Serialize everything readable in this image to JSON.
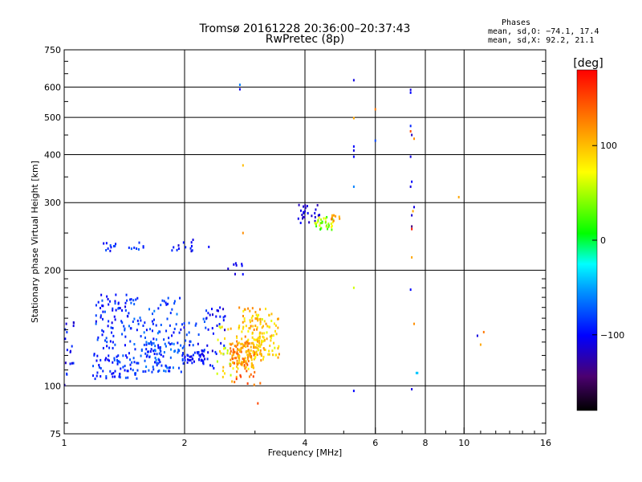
{
  "chart_data": {
    "type": "scatter",
    "title": "Tromsø 20161228 20:36:00–20:37:43",
    "subtitle": "RwPretec (8p)",
    "xlabel": "Frequency [MHz]",
    "ylabel": "Stationary phase Virtual Height [km]",
    "x_scale": "log",
    "y_scale": "log",
    "xlim": [
      1,
      16
    ],
    "ylim": [
      75,
      750
    ],
    "x_ticks": [
      1,
      2,
      4,
      6,
      8,
      10,
      16
    ],
    "x_tick_labels": [
      "1",
      "2",
      "4",
      "6",
      "8",
      "10",
      "16"
    ],
    "y_ticks": [
      75,
      100,
      200,
      300,
      400,
      500,
      600,
      750
    ],
    "y_tick_labels": [
      "75",
      "100",
      "200",
      "300",
      "400",
      "500",
      "600",
      "750"
    ],
    "grid": true,
    "stats": {
      "heading": "Phases",
      "line_o": "mean, sd,O: −74.1, 17.4",
      "line_x": "mean, sd,X:  92.2, 21.1"
    },
    "colorbar": {
      "label": "[deg]",
      "range": [
        -180,
        180
      ],
      "ticks": [
        100,
        0,
        -100
      ],
      "tick_labels": [
        "100",
        "0",
        "−100"
      ]
    },
    "clusters": [
      {
        "f": [
          1.0,
          1.06
        ],
        "h": [
          100,
          150
        ],
        "phase": [
          -120,
          -85
        ],
        "n": 18
      },
      {
        "f": [
          1.18,
          1.55
        ],
        "h": [
          104,
          122
        ],
        "phase": [
          -105,
          -70
        ],
        "n": 70
      },
      {
        "f": [
          1.55,
          2.0
        ],
        "h": [
          108,
          130
        ],
        "phase": [
          -100,
          -60
        ],
        "n": 80
      },
      {
        "f": [
          1.98,
          2.25
        ],
        "h": [
          114,
          124
        ],
        "phase": [
          -115,
          -85
        ],
        "n": 35
      },
      {
        "f": [
          1.2,
          1.45
        ],
        "h": [
          125,
          175
        ],
        "phase": [
          -110,
          -70
        ],
        "n": 70
      },
      {
        "f": [
          1.45,
          1.95
        ],
        "h": [
          122,
          170
        ],
        "phase": [
          -105,
          -60
        ],
        "n": 80
      },
      {
        "f": [
          1.95,
          2.3
        ],
        "h": [
          115,
          150
        ],
        "phase": [
          -110,
          -70
        ],
        "n": 30
      },
      {
        "f": [
          2.25,
          2.55
        ],
        "h": [
          110,
          160
        ],
        "phase": [
          -120,
          -80
        ],
        "n": 30
      },
      {
        "f": [
          2.4,
          2.65
        ],
        "h": [
          105,
          145
        ],
        "phase": [
          40,
          110
        ],
        "n": 25
      },
      {
        "f": [
          2.6,
          3.0
        ],
        "h": [
          112,
          130
        ],
        "phase": [
          90,
          145
        ],
        "n": 110
      },
      {
        "f": [
          2.7,
          3.2
        ],
        "h": [
          110,
          160
        ],
        "phase": [
          70,
          130
        ],
        "n": 100
      },
      {
        "f": [
          3.0,
          3.45
        ],
        "h": [
          118,
          155
        ],
        "phase": [
          60,
          120
        ],
        "n": 70
      },
      {
        "f": [
          2.45,
          3.1
        ],
        "h": [
          100,
          110
        ],
        "phase": [
          100,
          160
        ],
        "n": 15
      },
      {
        "f": [
          1.25,
          1.35
        ],
        "h": [
          224,
          236
        ],
        "phase": [
          -110,
          -70
        ],
        "n": 10
      },
      {
        "f": [
          1.45,
          1.6
        ],
        "h": [
          226,
          236
        ],
        "phase": [
          -95,
          -70
        ],
        "n": 8
      },
      {
        "f": [
          1.85,
          2.1
        ],
        "h": [
          224,
          238
        ],
        "phase": [
          -120,
          -80
        ],
        "n": 12
      },
      {
        "f": [
          2.55,
          2.8
        ],
        "h": [
          190,
          210
        ],
        "phase": [
          -115,
          -95
        ],
        "n": 8
      },
      {
        "f": [
          3.85,
          4.35
        ],
        "h": [
          265,
          300
        ],
        "phase": [
          -130,
          -100
        ],
        "n": 25
      },
      {
        "f": [
          4.2,
          4.7
        ],
        "h": [
          255,
          275
        ],
        "phase": [
          10,
          90
        ],
        "n": 35
      },
      {
        "f": [
          4.6,
          4.9
        ],
        "h": [
          268,
          278
        ],
        "phase": [
          100,
          145
        ],
        "n": 8
      }
    ],
    "points": [
      {
        "f": 2.75,
        "h": 608,
        "phase": -60
      },
      {
        "f": 2.75,
        "h": 592,
        "phase": -110
      },
      {
        "f": 2.8,
        "h": 375,
        "phase": 100
      },
      {
        "f": 2.8,
        "h": 250,
        "phase": 120
      },
      {
        "f": 5.3,
        "h": 625,
        "phase": -110
      },
      {
        "f": 5.3,
        "h": 420,
        "phase": -100
      },
      {
        "f": 5.3,
        "h": 410,
        "phase": -110
      },
      {
        "f": 5.3,
        "h": 395,
        "phase": -100
      },
      {
        "f": 5.3,
        "h": 330,
        "phase": -60
      },
      {
        "f": 5.3,
        "h": 180,
        "phase": 60
      },
      {
        "f": 5.3,
        "h": 97,
        "phase": -100
      },
      {
        "f": 5.3,
        "h": 498,
        "phase": 110
      },
      {
        "f": 6.0,
        "h": 525,
        "phase": 130
      },
      {
        "f": 6.0,
        "h": 435,
        "phase": -80
      },
      {
        "f": 7.35,
        "h": 590,
        "phase": -110
      },
      {
        "f": 7.35,
        "h": 580,
        "phase": -100
      },
      {
        "f": 7.35,
        "h": 475,
        "phase": -90
      },
      {
        "f": 7.35,
        "h": 460,
        "phase": 150
      },
      {
        "f": 7.4,
        "h": 450,
        "phase": -120
      },
      {
        "f": 7.5,
        "h": 440,
        "phase": 120
      },
      {
        "f": 7.35,
        "h": 395,
        "phase": -110
      },
      {
        "f": 7.4,
        "h": 340,
        "phase": -100
      },
      {
        "f": 7.35,
        "h": 330,
        "phase": -110
      },
      {
        "f": 7.5,
        "h": 292,
        "phase": -110
      },
      {
        "f": 7.45,
        "h": 285,
        "phase": 110
      },
      {
        "f": 7.4,
        "h": 278,
        "phase": -115
      },
      {
        "f": 7.4,
        "h": 260,
        "phase": -140
      },
      {
        "f": 7.4,
        "h": 256,
        "phase": 170
      },
      {
        "f": 7.4,
        "h": 216,
        "phase": 110
      },
      {
        "f": 7.35,
        "h": 178,
        "phase": -100
      },
      {
        "f": 7.5,
        "h": 145,
        "phase": 120
      },
      {
        "f": 7.6,
        "h": 108,
        "phase": -40
      },
      {
        "f": 7.65,
        "h": 108,
        "phase": -40
      },
      {
        "f": 7.4,
        "h": 98,
        "phase": -110
      },
      {
        "f": 9.7,
        "h": 310,
        "phase": 110
      },
      {
        "f": 10.8,
        "h": 135,
        "phase": -110
      },
      {
        "f": 11.2,
        "h": 138,
        "phase": 130
      },
      {
        "f": 11.0,
        "h": 128,
        "phase": 110
      },
      {
        "f": 3.05,
        "h": 90,
        "phase": 150
      },
      {
        "f": 2.1,
        "h": 240,
        "phase": -110
      },
      {
        "f": 2.3,
        "h": 230,
        "phase": -100
      }
    ]
  }
}
